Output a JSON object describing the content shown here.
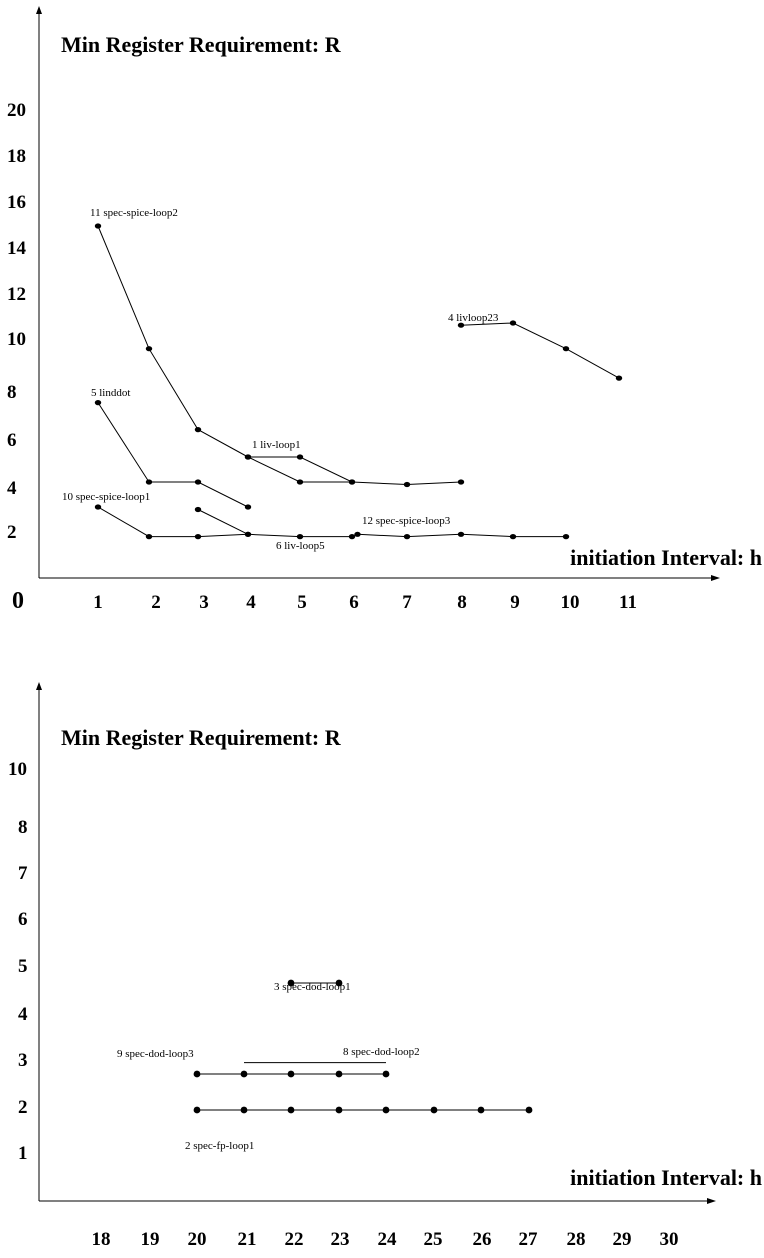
{
  "chart_data": [
    {
      "type": "line",
      "title": "",
      "ylabel": "Min Register Requirement: R",
      "xlabel": "initiation Interval: h",
      "origin_label": "0",
      "x_ticks": [
        "1",
        "2",
        "3",
        "4",
        "5",
        "6",
        "7",
        "8",
        "9",
        "10",
        "11"
      ],
      "y_ticks": [
        "2",
        "4",
        "6",
        "8",
        "10",
        "12",
        "14",
        "16",
        "18",
        "20"
      ],
      "xlim": [
        0,
        12
      ],
      "ylim": [
        0,
        22
      ],
      "series": [
        {
          "name": "11 spec-spice-loop2",
          "x": [
            1,
            2,
            3,
            4,
            5,
            6
          ],
          "y": [
            14.8,
            9.4,
            6.1,
            5,
            4,
            4
          ]
        },
        {
          "name": "5 linddot",
          "x": [
            1,
            2,
            3,
            4
          ],
          "y": [
            7.2,
            4,
            4,
            3
          ]
        },
        {
          "name": "1 liv-loop1",
          "x": [
            4,
            5,
            6,
            7,
            8
          ],
          "y": [
            5,
            5,
            4,
            3.9,
            4
          ]
        },
        {
          "name": "4 livloop23",
          "x": [
            8,
            9,
            10,
            11
          ],
          "y": [
            10.4,
            10.5,
            9.4,
            8.2
          ]
        },
        {
          "name": "10 spec-spice-loop1",
          "x": [
            1,
            2,
            3,
            4,
            5,
            6
          ],
          "y": [
            3,
            1.8,
            1.8,
            1.9,
            1.8,
            1.8
          ]
        },
        {
          "name": "6 liv-loop5",
          "x": [
            3,
            4
          ],
          "y": [
            2.9,
            1.9
          ]
        },
        {
          "name": "12 spec-spice-loop3",
          "x": [
            6.1,
            7,
            8,
            9,
            10
          ],
          "y": [
            1.9,
            1.8,
            1.9,
            1.8,
            1.8
          ]
        }
      ]
    },
    {
      "type": "line",
      "title": "",
      "ylabel": "Min Register Requirement: R",
      "xlabel": "initiation Interval: h",
      "x_ticks": [
        "18",
        "19",
        "20",
        "21",
        "22",
        "23",
        "24",
        "25",
        "26",
        "27",
        "28",
        "29",
        "30"
      ],
      "y_ticks": [
        "1",
        "2",
        "3",
        "4",
        "5",
        "6",
        "7",
        "8",
        "10"
      ],
      "xlim": [
        17,
        31
      ],
      "ylim": [
        0,
        11
      ],
      "series": [
        {
          "name": "3 spec-dod-loop1",
          "x": [
            22,
            23
          ],
          "y": [
            5,
            5
          ]
        },
        {
          "name": "9 spec-dod-loop3",
          "x": [
            20,
            21,
            22,
            23,
            24
          ],
          "y": [
            3,
            3,
            3,
            3,
            3
          ]
        },
        {
          "name": "8 spec-dod-loop2",
          "x": [
            21,
            24
          ],
          "y": [
            3.3,
            3.3
          ]
        },
        {
          "name": "2 spec-fp-loop1",
          "x": [
            20,
            21,
            22,
            23,
            24,
            25,
            26,
            27
          ],
          "y": [
            2,
            2,
            2,
            2,
            2,
            2,
            2,
            2
          ]
        }
      ]
    }
  ]
}
